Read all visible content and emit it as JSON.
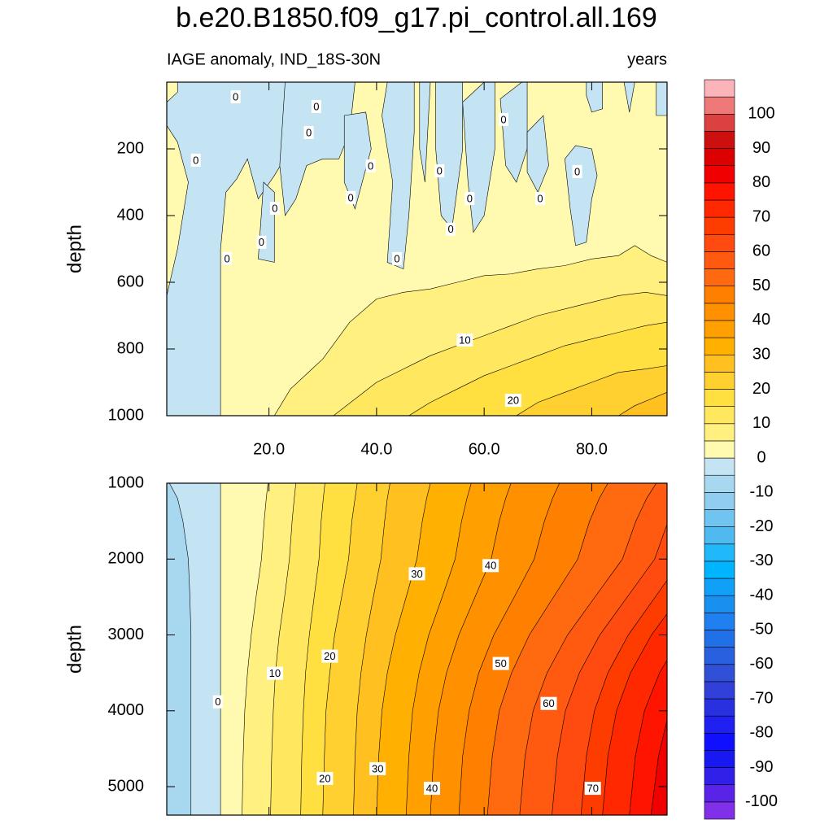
{
  "title": "b.e20.B1850.f09_g17.pi_control.all.169",
  "subtitle_left": "IAGE anomaly, IND_18S-30N",
  "subtitle_right": "years",
  "colorbar": {
    "levels": [
      -100,
      -95,
      -90,
      -85,
      -80,
      -75,
      -70,
      -65,
      -60,
      -55,
      -50,
      -45,
      -40,
      -35,
      -30,
      -25,
      -20,
      -15,
      -10,
      -5,
      0,
      5,
      10,
      15,
      20,
      25,
      30,
      35,
      40,
      45,
      50,
      55,
      60,
      65,
      70,
      75,
      80,
      85,
      90,
      95,
      100
    ],
    "colors": [
      "#8030e8",
      "#5a24e8",
      "#3020e8",
      "#1818f0",
      "#1010ff",
      "#2020f0",
      "#2830e0",
      "#3040d8",
      "#3050d8",
      "#2860e0",
      "#2070e8",
      "#2080f0",
      "#1890f0",
      "#10a0f8",
      "#00b4ff",
      "#20b8f8",
      "#50baf0",
      "#70c4f0",
      "#90cdf0",
      "#a8d8f0",
      "#c4e4f4",
      "#fffaaf",
      "#fff080",
      "#ffe860",
      "#ffe040",
      "#ffd030",
      "#ffc020",
      "#ffb000",
      "#ffa000",
      "#ff9000",
      "#ff8000",
      "#ff6a10",
      "#ff5a10",
      "#ff4a10",
      "#ff3c00",
      "#ff2800",
      "#ff1400",
      "#f00000",
      "#dc0000",
      "#cc1010",
      "#dc4040",
      "#ef7878",
      "#fbb4b9"
    ],
    "ticks": [
      100,
      90,
      80,
      70,
      60,
      50,
      40,
      30,
      20,
      10,
      0,
      -10,
      -20,
      -30,
      -40,
      -50,
      -60,
      -70,
      -80,
      -90,
      -100
    ]
  },
  "chart_data": [
    {
      "type": "contour",
      "ylabel": "depth",
      "xlim": [
        1,
        94
      ],
      "ylim": [
        0,
        1000
      ],
      "y_reversed": true,
      "xticks": [
        {
          "value": 20,
          "label": "20.0"
        },
        {
          "value": 40,
          "label": "40.0"
        },
        {
          "value": 60,
          "label": "60.0"
        },
        {
          "value": 80,
          "label": "80.0"
        }
      ],
      "yticks": [
        200,
        400,
        600,
        800,
        1000
      ],
      "background_level": 0,
      "regions": [
        {
          "level": -5,
          "x": [
            3,
            30,
            30,
            27,
            24,
            21,
            18,
            16,
            14,
            12,
            11,
            11,
            1,
            1,
            3,
            5,
            3,
            1,
            1,
            3
          ],
          "y": [
            0,
            0,
            60,
            100,
            200,
            280,
            350,
            230,
            290,
            330,
            500,
            1000,
            1000,
            640,
            500,
            300,
            180,
            130,
            60,
            30
          ]
        },
        {
          "level": -5,
          "x": [
            19,
            21,
            21,
            18
          ],
          "y": [
            300,
            330,
            540,
            530
          ]
        },
        {
          "level": -5,
          "x": [
            23,
            36,
            35,
            33,
            30,
            27,
            25,
            23,
            22
          ],
          "y": [
            0,
            0,
            150,
            230,
            230,
            250,
            350,
            400,
            250
          ]
        },
        {
          "level": -5,
          "x": [
            34,
            38,
            39,
            36,
            34
          ],
          "y": [
            100,
            90,
            200,
            380,
            300
          ]
        },
        {
          "level": -5,
          "x": [
            42,
            47,
            47,
            46,
            45,
            42,
            43,
            41
          ],
          "y": [
            0,
            0,
            150,
            400,
            560,
            540,
            300,
            100
          ]
        },
        {
          "level": -5,
          "x": [
            48,
            50,
            49,
            48
          ],
          "y": [
            0,
            0,
            300,
            200
          ]
        },
        {
          "level": -5,
          "x": [
            51,
            56,
            56,
            54,
            52,
            51
          ],
          "y": [
            0,
            0,
            200,
            440,
            400,
            200
          ]
        },
        {
          "level": -5,
          "x": [
            56,
            60,
            62,
            62,
            60,
            58,
            57
          ],
          "y": [
            60,
            0,
            0,
            200,
            400,
            450,
            300
          ]
        },
        {
          "level": -5,
          "x": [
            63,
            67,
            68,
            68,
            66,
            64
          ],
          "y": [
            50,
            0,
            0,
            200,
            300,
            250
          ]
        },
        {
          "level": -5,
          "x": [
            68,
            71,
            72,
            70,
            68
          ],
          "y": [
            150,
            100,
            250,
            330,
            270
          ]
        },
        {
          "level": -5,
          "x": [
            75,
            77,
            80,
            81,
            80,
            79,
            77,
            76
          ],
          "y": [
            230,
            190,
            200,
            280,
            350,
            480,
            490,
            380
          ]
        },
        {
          "level": -5,
          "x": [
            79,
            82,
            82,
            80,
            79
          ],
          "y": [
            0,
            0,
            80,
            90,
            40
          ]
        },
        {
          "level": -5,
          "x": [
            86,
            88,
            87
          ],
          "y": [
            0,
            0,
            90
          ]
        },
        {
          "level": -5,
          "x": [
            92,
            94,
            94,
            92
          ],
          "y": [
            0,
            0,
            100,
            100
          ]
        }
      ],
      "contours": [
        {
          "level": 5,
          "x": [
            21,
            24,
            30,
            35,
            40,
            45,
            50,
            55,
            60,
            65,
            70,
            75,
            80,
            85,
            88,
            91,
            94
          ],
          "y": [
            1000,
            920,
            830,
            720,
            650,
            630,
            620,
            600,
            580,
            575,
            560,
            550,
            530,
            520,
            490,
            520,
            540
          ]
        },
        {
          "level": 10,
          "x": [
            32,
            36,
            40,
            45,
            50,
            55,
            60,
            65,
            70,
            75,
            80,
            85,
            90,
            94
          ],
          "y": [
            1000,
            950,
            900,
            860,
            820,
            790,
            760,
            730,
            700,
            680,
            660,
            640,
            630,
            640
          ]
        },
        {
          "level": 15,
          "x": [
            46,
            50,
            55,
            60,
            65,
            70,
            75,
            80,
            85,
            90,
            94
          ],
          "y": [
            1000,
            960,
            920,
            880,
            850,
            820,
            790,
            770,
            750,
            730,
            720
          ]
        },
        {
          "level": 20,
          "x": [
            66,
            70,
            75,
            80,
            85,
            90,
            94
          ],
          "y": [
            1000,
            960,
            930,
            900,
            870,
            860,
            850
          ]
        },
        {
          "level": 25,
          "x": [
            85,
            88,
            91,
            94
          ],
          "y": [
            1000,
            970,
            950,
            930
          ]
        }
      ],
      "labels": [
        {
          "x": 13.8,
          "y": 44,
          "value": 0
        },
        {
          "x": 28.8,
          "y": 73,
          "value": 0
        },
        {
          "x": 27.4,
          "y": 151,
          "value": 0
        },
        {
          "x": 63.6,
          "y": 112,
          "value": 0
        },
        {
          "x": 6.4,
          "y": 234,
          "value": 0
        },
        {
          "x": 38.9,
          "y": 251,
          "value": 0
        },
        {
          "x": 51.7,
          "y": 266,
          "value": 0
        },
        {
          "x": 77.3,
          "y": 268,
          "value": 0
        },
        {
          "x": 35.2,
          "y": 346,
          "value": 0
        },
        {
          "x": 57.3,
          "y": 349,
          "value": 0
        },
        {
          "x": 70.4,
          "y": 349,
          "value": 0
        },
        {
          "x": 21.1,
          "y": 378,
          "value": 0
        },
        {
          "x": 53.8,
          "y": 441,
          "value": 0
        },
        {
          "x": 18.6,
          "y": 480,
          "value": 0
        },
        {
          "x": 12.2,
          "y": 529,
          "value": 0
        },
        {
          "x": 43.8,
          "y": 529,
          "value": 0
        },
        {
          "x": 56.4,
          "y": 773,
          "value": 10
        },
        {
          "x": 65.4,
          "y": 954,
          "value": 20
        }
      ]
    },
    {
      "type": "contour",
      "ylabel": "depth",
      "xlim": [
        1,
        94
      ],
      "ylim": [
        1000,
        5375
      ],
      "y_reversed": true,
      "yticks": [
        1000,
        2000,
        3000,
        4000,
        5000
      ],
      "background_level": -10,
      "y": [
        1000,
        1200,
        1500,
        2000,
        2500,
        3000,
        3500,
        4000,
        4600,
        5375
      ],
      "contours": [
        {
          "level": -5,
          "x": [
            1.5,
            3,
            4,
            5,
            5.3,
            5.5,
            5.5,
            5.5,
            5.5,
            5.5
          ]
        },
        {
          "level": 0,
          "x": [
            11,
            11,
            11,
            11,
            11,
            11,
            11,
            11,
            11,
            11
          ]
        },
        {
          "level": 5,
          "x": [
            19.8,
            19.5,
            19.1,
            18.6,
            17.6,
            16.7,
            16,
            15.5,
            15.2,
            15
          ]
        },
        {
          "level": 10,
          "x": [
            25,
            24.7,
            24.3,
            23.8,
            22.9,
            21.9,
            21.2,
            20.8,
            20.5,
            20.3
          ]
        },
        {
          "level": 15,
          "x": [
            30.4,
            30.1,
            29.7,
            29.3,
            28.4,
            27.5,
            26.8,
            26.4,
            26.1,
            25.9
          ]
        },
        {
          "level": 20,
          "x": [
            36.4,
            36,
            35.4,
            34.8,
            33.5,
            32.2,
            31.3,
            30.6,
            30.3,
            30
          ]
        },
        {
          "level": 25,
          "x": [
            42.5,
            42,
            41.5,
            40.8,
            39.4,
            38.1,
            37.1,
            36.4,
            36,
            35.7
          ]
        },
        {
          "level": 30,
          "x": [
            50,
            49.3,
            48.5,
            47.5,
            45.5,
            43.5,
            42,
            41,
            40.4,
            40
          ]
        },
        {
          "level": 35,
          "x": [
            57.6,
            56.8,
            55.8,
            54.6,
            52.2,
            49.7,
            47.9,
            46.7,
            46,
            45.5
          ]
        },
        {
          "level": 40,
          "x": [
            65,
            64,
            62.8,
            61.3,
            58.3,
            55.3,
            53,
            51.5,
            50.6,
            50
          ]
        },
        {
          "level": 45,
          "x": [
            74,
            72.7,
            71.2,
            69.3,
            65.6,
            61.8,
            59,
            57.2,
            56,
            55.3
          ]
        },
        {
          "level": 50,
          "x": [
            83,
            81.4,
            79.6,
            77.4,
            72.9,
            68.4,
            65.1,
            62.8,
            61.5,
            60.6
          ]
        },
        {
          "level": 55,
          "x": [
            92,
            90.2,
            88.2,
            85.7,
            80.6,
            75.5,
            71.7,
            69.1,
            67.6,
            66.6
          ]
        },
        {
          "level": 60,
          "x": [
            98,
            96.2,
            94.2,
            91.7,
            86.6,
            81.5,
            77.7,
            75.1,
            73.6,
            72.6
          ]
        },
        {
          "level": 65,
          "x": [
            103,
            101.3,
            99.3,
            96.8,
            91.8,
            86.8,
            83,
            80.5,
            79,
            78
          ]
        },
        {
          "level": 70,
          "x": [
            108,
            106.2,
            104.1,
            101.5,
            96.3,
            91.1,
            87.2,
            84.6,
            83,
            82
          ]
        },
        {
          "level": 75,
          "x": [
            115,
            113,
            110.8,
            108,
            102.4,
            96.8,
            92.6,
            89.8,
            88.1,
            87
          ]
        },
        {
          "level": 80,
          "x": [
            125,
            122.6,
            119.9,
            116.5,
            109.7,
            102.9,
            97.8,
            94.4,
            92.4,
            91
          ]
        }
      ],
      "labels": [
        {
          "x": 10.5,
          "y": 3882,
          "value": 0
        },
        {
          "x": 21.1,
          "y": 3505,
          "value": 10
        },
        {
          "x": 31.3,
          "y": 3280,
          "value": 20
        },
        {
          "x": 47.5,
          "y": 2194,
          "value": 30
        },
        {
          "x": 61.2,
          "y": 2086,
          "value": 40
        },
        {
          "x": 63.1,
          "y": 3376,
          "value": 50
        },
        {
          "x": 72,
          "y": 3903,
          "value": 60
        },
        {
          "x": 30.4,
          "y": 4892,
          "value": 20
        },
        {
          "x": 40.2,
          "y": 4763,
          "value": 30
        },
        {
          "x": 50.3,
          "y": 5022,
          "value": 40
        },
        {
          "x": 80.2,
          "y": 5022,
          "value": 70
        }
      ]
    }
  ]
}
